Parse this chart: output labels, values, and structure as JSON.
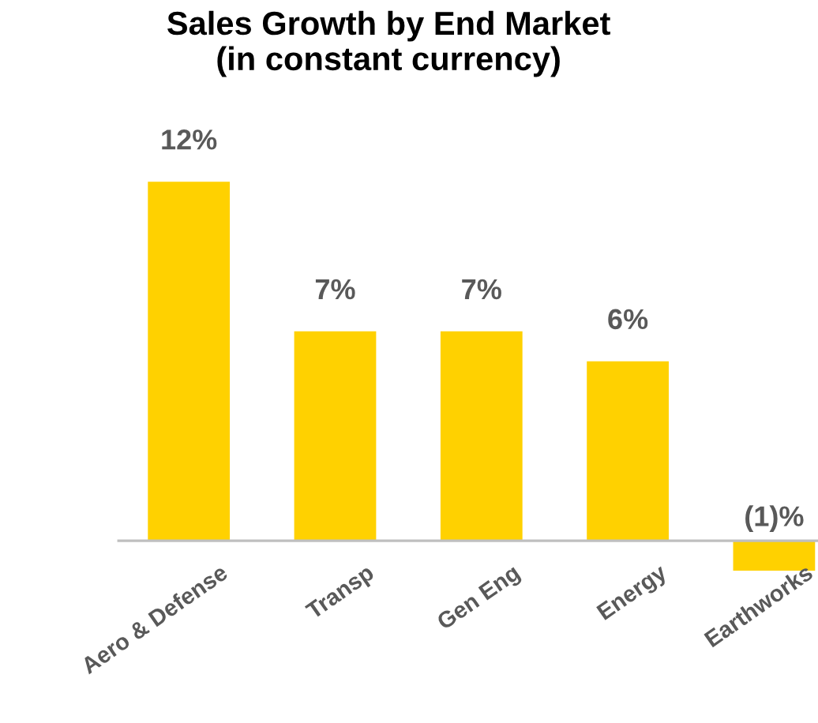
{
  "chart_data": {
    "type": "bar",
    "title": "Sales Growth by End Market\n(in constant currency)",
    "categories": [
      "Aero & Defense",
      "Transp",
      "Gen Eng",
      "Energy",
      "Earthworks"
    ],
    "values": [
      12,
      7,
      7,
      6,
      -1
    ],
    "value_labels": [
      "12%",
      "7%",
      "7%",
      "6%",
      "(1)%"
    ],
    "color": "#ffd100",
    "grid": false
  }
}
